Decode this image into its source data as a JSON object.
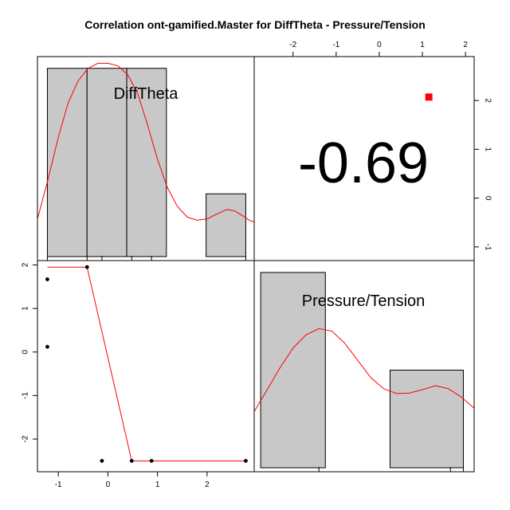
{
  "chart_data": {
    "type": "scatter-matrix",
    "title": "Correlation ont-gamified.Master for DiffTheta - Pressure/Tension",
    "variables": [
      "DiffTheta",
      "Pressure/Tension"
    ],
    "correlation_label": "-0.69",
    "scatter": {
      "x_name": "DiffTheta",
      "y_name": "Pressure/Tension",
      "x_ticks": [
        -1,
        0,
        1,
        2
      ],
      "y_ticks": [
        -2,
        -1,
        0,
        1,
        2
      ],
      "xlim": [
        -1.42,
        2.95
      ],
      "ylim": [
        -2.75,
        2.1
      ],
      "points": [
        {
          "x": -1.22,
          "y": 1.67
        },
        {
          "x": -1.22,
          "y": 0.12
        },
        {
          "x": -0.42,
          "y": 1.95
        },
        {
          "x": -0.12,
          "y": -2.5
        },
        {
          "x": 0.48,
          "y": -2.5
        },
        {
          "x": 0.88,
          "y": -2.5
        },
        {
          "x": 2.78,
          "y": -2.5
        }
      ],
      "smoother": [
        {
          "x": -1.22,
          "y": 1.95
        },
        {
          "x": -0.42,
          "y": 1.95
        },
        {
          "x": 0.48,
          "y": -2.5
        },
        {
          "x": 2.78,
          "y": -2.5
        }
      ],
      "smoother_color": "#ff0000"
    },
    "upper_panel": {
      "x_ticks": [
        -2,
        -1,
        0,
        1,
        2
      ],
      "y_ticks": [
        -1,
        0,
        1,
        2
      ],
      "xlim": [
        -2.9,
        2.2
      ],
      "ylim": [
        -1.28,
        2.9
      ],
      "marker": {
        "x": 1.15,
        "y": 2.07
      },
      "marker_color": "#ff0000"
    },
    "diag_difftheta": {
      "label": "DiffTheta",
      "xlim": [
        -1.42,
        2.95
      ],
      "bins": [
        {
          "x0": -1.22,
          "x1": -0.42,
          "count": 3
        },
        {
          "x0": -0.42,
          "x1": 0.38,
          "count": 3
        },
        {
          "x0": 0.38,
          "x1": 1.18,
          "count": 3
        },
        {
          "x0": 1.18,
          "x1": 1.98,
          "count": 0
        },
        {
          "x0": 1.98,
          "x1": 2.78,
          "count": 1
        }
      ],
      "max_count": 3,
      "rug": [
        -1.22,
        -0.42,
        -0.12,
        0.48,
        0.88,
        2.78
      ],
      "density": [
        {
          "x": -1.42,
          "y": 0.6
        },
        {
          "x": -1.2,
          "y": 1.25
        },
        {
          "x": -1.0,
          "y": 1.9
        },
        {
          "x": -0.8,
          "y": 2.45
        },
        {
          "x": -0.6,
          "y": 2.8
        },
        {
          "x": -0.4,
          "y": 3.0
        },
        {
          "x": -0.2,
          "y": 3.08
        },
        {
          "x": 0.0,
          "y": 3.08
        },
        {
          "x": 0.2,
          "y": 3.04
        },
        {
          "x": 0.4,
          "y": 2.9
        },
        {
          "x": 0.6,
          "y": 2.6
        },
        {
          "x": 0.8,
          "y": 2.1
        },
        {
          "x": 1.0,
          "y": 1.55
        },
        {
          "x": 1.2,
          "y": 1.1
        },
        {
          "x": 1.4,
          "y": 0.8
        },
        {
          "x": 1.6,
          "y": 0.63
        },
        {
          "x": 1.8,
          "y": 0.58
        },
        {
          "x": 2.0,
          "y": 0.6
        },
        {
          "x": 2.2,
          "y": 0.68
        },
        {
          "x": 2.4,
          "y": 0.75
        },
        {
          "x": 2.55,
          "y": 0.73
        },
        {
          "x": 2.7,
          "y": 0.66
        },
        {
          "x": 2.85,
          "y": 0.58
        },
        {
          "x": 2.95,
          "y": 0.55
        }
      ],
      "density_color": "#ff0000",
      "bar_color": "#c8c8c8"
    },
    "diag_pressure": {
      "label": "Pressure/Tension",
      "xlim": [
        -2.9,
        2.2
      ],
      "bins": [
        {
          "x0": -2.75,
          "x1": -1.25,
          "count": 4
        },
        {
          "x0": -1.25,
          "x1": 0.25,
          "count": 0
        },
        {
          "x0": 0.25,
          "x1": 1.95,
          "count": 2
        }
      ],
      "max_count": 4,
      "rug": [
        -1.4,
        1.65,
        1.95
      ],
      "density": [
        {
          "x": -2.9,
          "y": 1.15
        },
        {
          "x": -2.6,
          "y": 1.6
        },
        {
          "x": -2.3,
          "y": 2.05
        },
        {
          "x": -2.0,
          "y": 2.45
        },
        {
          "x": -1.7,
          "y": 2.72
        },
        {
          "x": -1.4,
          "y": 2.85
        },
        {
          "x": -1.1,
          "y": 2.8
        },
        {
          "x": -0.8,
          "y": 2.55
        },
        {
          "x": -0.5,
          "y": 2.2
        },
        {
          "x": -0.2,
          "y": 1.85
        },
        {
          "x": 0.1,
          "y": 1.62
        },
        {
          "x": 0.4,
          "y": 1.52
        },
        {
          "x": 0.7,
          "y": 1.53
        },
        {
          "x": 1.0,
          "y": 1.6
        },
        {
          "x": 1.3,
          "y": 1.68
        },
        {
          "x": 1.6,
          "y": 1.62
        },
        {
          "x": 1.9,
          "y": 1.45
        },
        {
          "x": 2.2,
          "y": 1.22
        }
      ],
      "density_color": "#ff0000",
      "bar_color": "#c8c8c8"
    }
  }
}
